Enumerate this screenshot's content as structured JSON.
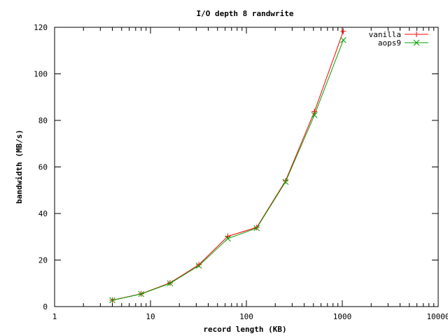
{
  "chart_data": {
    "type": "line",
    "title": "I/O depth 8 randwrite",
    "xlabel": "record length (KB)",
    "ylabel": "bandwidth (MB/s)",
    "xscale": "log",
    "xlim": [
      1,
      10000
    ],
    "ylim": [
      0,
      120
    ],
    "x_ticks": [
      1,
      10,
      100,
      1000,
      10000
    ],
    "x_tick_labels": [
      "1",
      "10",
      "100",
      "1000",
      "10000"
    ],
    "y_ticks": [
      0,
      20,
      40,
      60,
      80,
      100,
      120
    ],
    "y_tick_labels": [
      "0",
      "20",
      "40",
      "60",
      "80",
      "100",
      "120"
    ],
    "grid": false,
    "legend_position": "top-right",
    "x": [
      4,
      8,
      16,
      32,
      64,
      128,
      256,
      512,
      1024
    ],
    "series": [
      {
        "name": "vanilla",
        "color": "#ff0000",
        "marker": "plus",
        "values": [
          2.8,
          5.5,
          10.2,
          18.0,
          30.2,
          34.0,
          54.0,
          83.8,
          118.3
        ]
      },
      {
        "name": "aops9",
        "color": "#00a000",
        "marker": "cross",
        "values": [
          2.7,
          5.4,
          10.0,
          17.6,
          29.2,
          33.7,
          53.6,
          82.3,
          114.5
        ]
      }
    ]
  }
}
